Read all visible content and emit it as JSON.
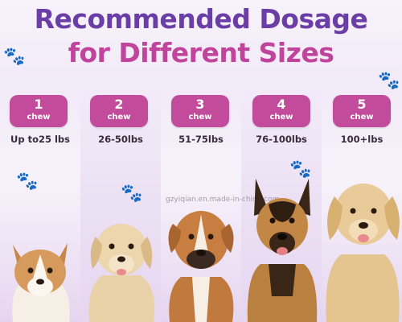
{
  "title_line1": "Recommended Dosage",
  "title_line2": "for Different Sizes",
  "colors": {
    "title_purple": "#6a3ea6",
    "title_pink": "#c0449c",
    "badge": "#c24b9c"
  },
  "watermark": "gzyiqian.en.made-in-china.com",
  "tiers": [
    {
      "count": "1",
      "unit": "chew",
      "weight": "Up to25 lbs",
      "dog": "corgi-puppy"
    },
    {
      "count": "2",
      "unit": "chew",
      "weight": "26-50lbs",
      "dog": "labrador-puppy"
    },
    {
      "count": "3",
      "unit": "chew",
      "weight": "51-75lbs",
      "dog": "boxer"
    },
    {
      "count": "4",
      "unit": "chew",
      "weight": "76-100lbs",
      "dog": "german-shepherd"
    },
    {
      "count": "5",
      "unit": "chew",
      "weight": "100+lbs",
      "dog": "golden-retriever"
    }
  ]
}
